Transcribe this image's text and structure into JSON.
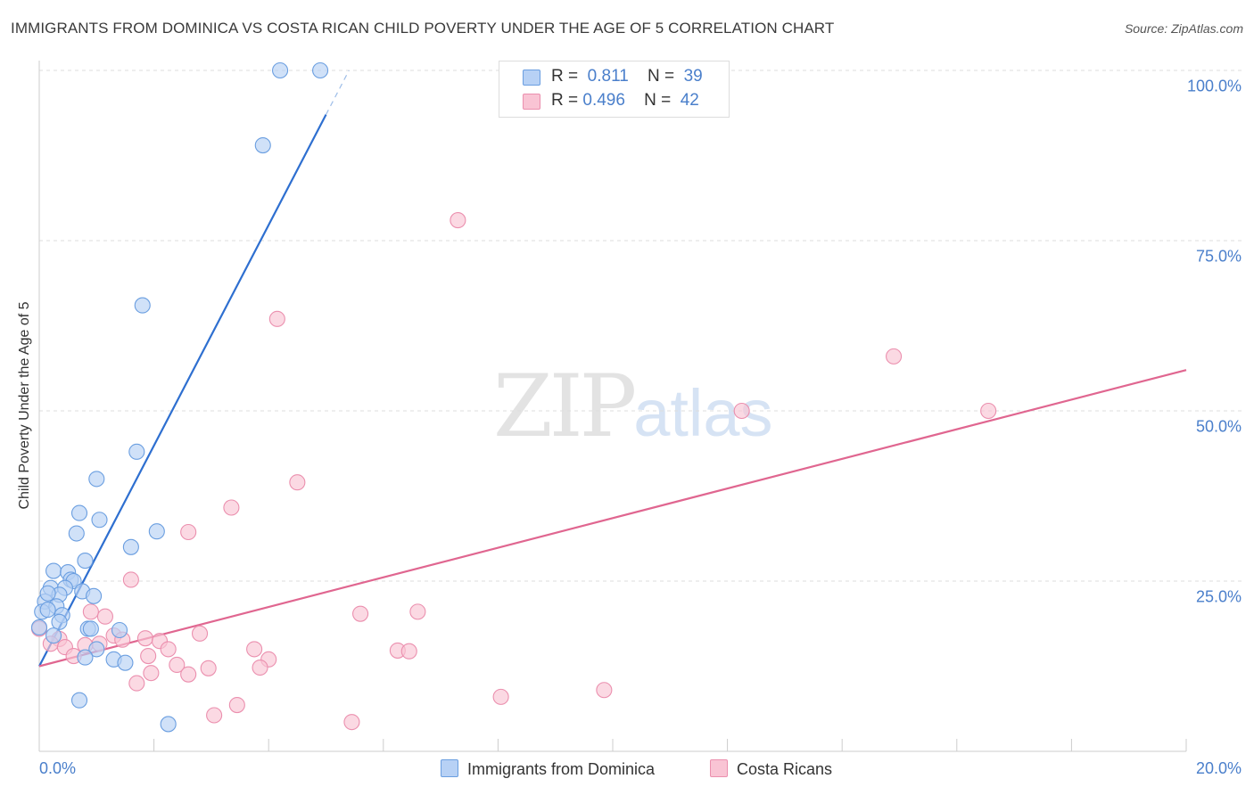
{
  "title": "IMMIGRANTS FROM DOMINICA VS COSTA RICAN CHILD POVERTY UNDER THE AGE OF 5 CORRELATION CHART",
  "source": "Source: ZipAtlas.com",
  "watermark": {
    "zip": "ZIP",
    "atlas": "atlas"
  },
  "legend": {
    "rows": [
      {
        "r_label": "R =",
        "r_value": "0.811",
        "n_label": "N =",
        "n_value": "39"
      },
      {
        "r_label": "R =",
        "r_value": "0.496",
        "n_label": "N =",
        "n_value": "42"
      }
    ]
  },
  "colors": {
    "blue_fill": "#b7d1f5",
    "blue_stroke": "#6a9ee0",
    "blue_line": "#2e6fd0",
    "pink_fill": "#f9c4d4",
    "pink_stroke": "#eb8fae",
    "pink_line": "#e06690",
    "tick_label": "#4a7fcb",
    "grid": "#dddddd"
  },
  "chart_data": {
    "type": "scatter",
    "title": "IMMIGRANTS FROM DOMINICA VS COSTA RICAN CHILD POVERTY UNDER THE AGE OF 5 CORRELATION CHART",
    "xlabel": "",
    "ylabel": "Child Poverty Under the Age of 5",
    "xlim": [
      0,
      20
    ],
    "ylim": [
      0,
      105
    ],
    "x_tick_labels": [
      "0.0%",
      "20.0%"
    ],
    "y_ticks": [
      25,
      50,
      75,
      100
    ],
    "y_tick_labels": [
      "25.0%",
      "50.0%",
      "75.0%",
      "100.0%"
    ],
    "grid": true,
    "legend_position": "top-center",
    "series": [
      {
        "name": "Immigrants from Dominica",
        "color": "#6a9ee0",
        "points": [
          [
            4.2,
            100.0
          ],
          [
            4.9,
            100.0
          ],
          [
            3.9,
            89.0
          ],
          [
            1.8,
            65.5
          ],
          [
            1.7,
            44.0
          ],
          [
            1.0,
            40.0
          ],
          [
            0.7,
            35.0
          ],
          [
            1.05,
            34.0
          ],
          [
            0.65,
            32.0
          ],
          [
            2.05,
            32.3
          ],
          [
            1.6,
            30.0
          ],
          [
            0.8,
            28.0
          ],
          [
            0.25,
            26.5
          ],
          [
            0.5,
            26.3
          ],
          [
            0.55,
            25.2
          ],
          [
            0.6,
            25.0
          ],
          [
            0.2,
            24.0
          ],
          [
            0.45,
            24.0
          ],
          [
            0.35,
            23.0
          ],
          [
            0.75,
            23.5
          ],
          [
            0.95,
            22.8
          ],
          [
            0.1,
            22.0
          ],
          [
            0.3,
            21.3
          ],
          [
            0.05,
            20.5
          ],
          [
            0.15,
            20.8
          ],
          [
            0.4,
            20.0
          ],
          [
            0.35,
            19.0
          ],
          [
            0.0,
            18.2
          ],
          [
            0.85,
            18.0
          ],
          [
            0.9,
            18.0
          ],
          [
            1.4,
            17.8
          ],
          [
            0.25,
            17.0
          ],
          [
            1.0,
            15.0
          ],
          [
            0.8,
            13.8
          ],
          [
            1.3,
            13.5
          ],
          [
            1.5,
            13.0
          ],
          [
            0.7,
            7.5
          ],
          [
            2.25,
            4.0
          ],
          [
            0.15,
            23.2
          ]
        ],
        "trend": {
          "x": [
            0.0,
            5.0
          ],
          "y": [
            12.5,
            93.5
          ]
        }
      },
      {
        "name": "Costa Ricans",
        "color": "#eb8fae",
        "points": [
          [
            7.3,
            78.0
          ],
          [
            4.15,
            63.5
          ],
          [
            14.9,
            58.0
          ],
          [
            12.25,
            50.0
          ],
          [
            16.55,
            50.0
          ],
          [
            4.5,
            39.5
          ],
          [
            3.35,
            35.8
          ],
          [
            2.6,
            32.2
          ],
          [
            1.6,
            25.2
          ],
          [
            5.6,
            20.2
          ],
          [
            6.6,
            20.5
          ],
          [
            0.9,
            20.5
          ],
          [
            1.15,
            19.8
          ],
          [
            0.0,
            18.0
          ],
          [
            2.8,
            17.3
          ],
          [
            0.35,
            16.5
          ],
          [
            1.3,
            17.0
          ],
          [
            1.85,
            16.6
          ],
          [
            1.45,
            16.4
          ],
          [
            2.1,
            16.2
          ],
          [
            0.2,
            15.8
          ],
          [
            1.05,
            15.8
          ],
          [
            0.8,
            15.6
          ],
          [
            0.45,
            15.3
          ],
          [
            2.25,
            15.0
          ],
          [
            3.75,
            15.0
          ],
          [
            6.25,
            14.8
          ],
          [
            6.45,
            14.7
          ],
          [
            0.6,
            14.0
          ],
          [
            1.9,
            14.0
          ],
          [
            4.0,
            13.5
          ],
          [
            2.4,
            12.7
          ],
          [
            3.85,
            12.3
          ],
          [
            2.95,
            12.2
          ],
          [
            2.6,
            11.3
          ],
          [
            1.95,
            11.5
          ],
          [
            1.7,
            10.0
          ],
          [
            9.85,
            9.0
          ],
          [
            8.05,
            8.0
          ],
          [
            3.45,
            6.8
          ],
          [
            3.05,
            5.3
          ],
          [
            5.45,
            4.3
          ]
        ],
        "trend": {
          "x": [
            0.0,
            20.0
          ],
          "y": [
            12.5,
            56.0
          ]
        }
      }
    ]
  },
  "axis": {
    "y_title": "Child Poverty Under the Age of 5",
    "x_min_label": "0.0%",
    "x_max_label": "20.0%"
  },
  "bottom_legend": {
    "series1": "Immigrants from Dominica",
    "series2": "Costa Ricans"
  }
}
